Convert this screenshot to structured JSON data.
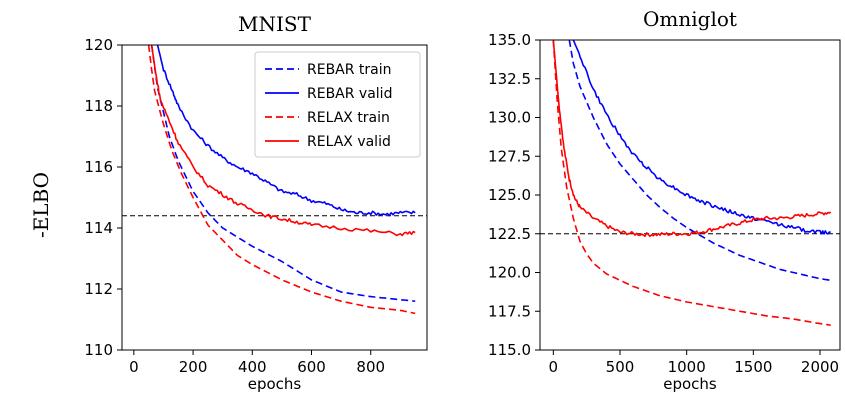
{
  "figure": {
    "ylabel": "-ELBO"
  },
  "chart_data": [
    {
      "type": "line",
      "title": "MNIST",
      "xlabel": "epochs",
      "ylabel": "-ELBO",
      "xlim": [
        -40,
        990
      ],
      "ylim": [
        110,
        120
      ],
      "xticks": [
        0,
        200,
        400,
        600,
        800
      ],
      "yticks": [
        110,
        112,
        114,
        116,
        118,
        120
      ],
      "ytick_format": "int",
      "grid": false,
      "legend": "top-right",
      "reference_line": {
        "y": 114.4,
        "style": "dashed",
        "color": "#000000"
      },
      "series": [
        {
          "name": "REBAR train",
          "color": "#0000ff",
          "style": "dashed",
          "points": [
            [
              60,
              120
            ],
            [
              70,
              119.3
            ],
            [
              80,
              118.6
            ],
            [
              100,
              117.8
            ],
            [
              120,
              117.0
            ],
            [
              150,
              116.2
            ],
            [
              180,
              115.6
            ],
            [
              200,
              115.2
            ],
            [
              250,
              114.5
            ],
            [
              300,
              114.0
            ],
            [
              350,
              113.7
            ],
            [
              400,
              113.4
            ],
            [
              500,
              112.9
            ],
            [
              600,
              112.3
            ],
            [
              700,
              111.9
            ],
            [
              800,
              111.75
            ],
            [
              900,
              111.65
            ],
            [
              950,
              111.6
            ]
          ]
        },
        {
          "name": "REBAR valid",
          "color": "#0000ff",
          "style": "solid",
          "points": [
            [
              80,
              120
            ],
            [
              100,
              119.2
            ],
            [
              130,
              118.5
            ],
            [
              150,
              118.0
            ],
            [
              200,
              117.2
            ],
            [
              250,
              116.7
            ],
            [
              300,
              116.3
            ],
            [
              350,
              116.0
            ],
            [
              400,
              115.8
            ],
            [
              450,
              115.5
            ],
            [
              500,
              115.2
            ],
            [
              550,
              115.1
            ],
            [
              600,
              114.9
            ],
            [
              650,
              114.8
            ],
            [
              700,
              114.6
            ],
            [
              750,
              114.5
            ],
            [
              800,
              114.5
            ],
            [
              850,
              114.45
            ],
            [
              900,
              114.5
            ],
            [
              950,
              114.5
            ]
          ]
        },
        {
          "name": "RELAX train",
          "color": "#ff0000",
          "style": "dashed",
          "points": [
            [
              50,
              120
            ],
            [
              60,
              119.2
            ],
            [
              70,
              118.5
            ],
            [
              100,
              117.4
            ],
            [
              130,
              116.5
            ],
            [
              160,
              115.8
            ],
            [
              200,
              115.0
            ],
            [
              250,
              114.1
            ],
            [
              300,
              113.6
            ],
            [
              350,
              113.1
            ],
            [
              400,
              112.8
            ],
            [
              500,
              112.3
            ],
            [
              600,
              111.9
            ],
            [
              700,
              111.6
            ],
            [
              800,
              111.4
            ],
            [
              900,
              111.3
            ],
            [
              950,
              111.2
            ]
          ]
        },
        {
          "name": "RELAX valid",
          "color": "#ff0000",
          "style": "solid",
          "points": [
            [
              60,
              120
            ],
            [
              75,
              119.0
            ],
            [
              90,
              118.2
            ],
            [
              120,
              117.5
            ],
            [
              150,
              116.8
            ],
            [
              200,
              116.0
            ],
            [
              250,
              115.4
            ],
            [
              300,
              115.1
            ],
            [
              350,
              114.8
            ],
            [
              400,
              114.6
            ],
            [
              450,
              114.4
            ],
            [
              500,
              114.3
            ],
            [
              550,
              114.2
            ],
            [
              600,
              114.1
            ],
            [
              700,
              114.0
            ],
            [
              800,
              113.9
            ],
            [
              900,
              113.8
            ],
            [
              950,
              113.85
            ]
          ]
        }
      ]
    },
    {
      "type": "line",
      "title": "Omniglot",
      "xlabel": "epochs",
      "ylabel": "",
      "xlim": [
        -100,
        2150
      ],
      "ylim": [
        115,
        135
      ],
      "xticks": [
        0,
        500,
        1000,
        1500,
        2000
      ],
      "yticks": [
        115.0,
        117.5,
        120.0,
        122.5,
        125.0,
        127.5,
        130.0,
        132.5,
        135.0
      ],
      "ytick_format": "1dp",
      "grid": false,
      "legend": "",
      "reference_line": {
        "y": 122.5,
        "style": "dashed",
        "color": "#000000"
      },
      "series": [
        {
          "name": "REBAR train",
          "color": "#0000ff",
          "style": "dashed",
          "points": [
            [
              120,
              135
            ],
            [
              150,
              133.5
            ],
            [
              200,
              132.0
            ],
            [
              300,
              130.0
            ],
            [
              400,
              128.3
            ],
            [
              500,
              127.0
            ],
            [
              600,
              126.0
            ],
            [
              700,
              125.0
            ],
            [
              800,
              124.2
            ],
            [
              900,
              123.5
            ],
            [
              1000,
              122.9
            ],
            [
              1100,
              122.4
            ],
            [
              1200,
              121.9
            ],
            [
              1300,
              121.5
            ],
            [
              1400,
              121.1
            ],
            [
              1500,
              120.8
            ],
            [
              1600,
              120.5
            ],
            [
              1700,
              120.2
            ],
            [
              1800,
              120.0
            ],
            [
              1900,
              119.8
            ],
            [
              2000,
              119.6
            ],
            [
              2080,
              119.5
            ]
          ]
        },
        {
          "name": "REBAR valid",
          "color": "#0000ff",
          "style": "solid",
          "points": [
            [
              150,
              135
            ],
            [
              200,
              134.0
            ],
            [
              300,
              131.8
            ],
            [
              400,
              130.2
            ],
            [
              500,
              128.8
            ],
            [
              600,
              127.6
            ],
            [
              700,
              126.8
            ],
            [
              800,
              126.0
            ],
            [
              900,
              125.5
            ],
            [
              1000,
              125.0
            ],
            [
              1100,
              124.6
            ],
            [
              1200,
              124.3
            ],
            [
              1300,
              124.0
            ],
            [
              1400,
              123.7
            ],
            [
              1500,
              123.5
            ],
            [
              1600,
              123.3
            ],
            [
              1700,
              123.1
            ],
            [
              1800,
              122.9
            ],
            [
              1900,
              122.7
            ],
            [
              2000,
              122.6
            ],
            [
              2080,
              122.6
            ]
          ]
        },
        {
          "name": "RELAX train",
          "color": "#ff0000",
          "style": "dashed",
          "points": [
            [
              0,
              135
            ],
            [
              30,
              131.0
            ],
            [
              60,
              128.0
            ],
            [
              100,
              125.5
            ],
            [
              150,
              123.5
            ],
            [
              200,
              122.0
            ],
            [
              250,
              121.2
            ],
            [
              300,
              120.6
            ],
            [
              400,
              119.9
            ],
            [
              500,
              119.5
            ],
            [
              600,
              119.1
            ],
            [
              700,
              118.8
            ],
            [
              800,
              118.5
            ],
            [
              900,
              118.3
            ],
            [
              1000,
              118.1
            ],
            [
              1200,
              117.8
            ],
            [
              1400,
              117.5
            ],
            [
              1600,
              117.2
            ],
            [
              1800,
              117.0
            ],
            [
              2000,
              116.7
            ],
            [
              2080,
              116.6
            ]
          ]
        },
        {
          "name": "RELAX valid",
          "color": "#ff0000",
          "style": "solid",
          "points": [
            [
              0,
              135
            ],
            [
              40,
              131.0
            ],
            [
              80,
              128.0
            ],
            [
              120,
              126.0
            ],
            [
              160,
              124.8
            ],
            [
              200,
              124.2
            ],
            [
              300,
              123.5
            ],
            [
              400,
              123.0
            ],
            [
              500,
              122.6
            ],
            [
              600,
              122.5
            ],
            [
              700,
              122.45
            ],
            [
              800,
              122.45
            ],
            [
              900,
              122.5
            ],
            [
              1000,
              122.5
            ],
            [
              1100,
              122.6
            ],
            [
              1200,
              122.8
            ],
            [
              1300,
              123.0
            ],
            [
              1400,
              123.2
            ],
            [
              1500,
              123.4
            ],
            [
              1600,
              123.5
            ],
            [
              1700,
              123.5
            ],
            [
              1800,
              123.6
            ],
            [
              1900,
              123.7
            ],
            [
              2000,
              123.8
            ],
            [
              2080,
              123.9
            ]
          ]
        }
      ]
    }
  ]
}
